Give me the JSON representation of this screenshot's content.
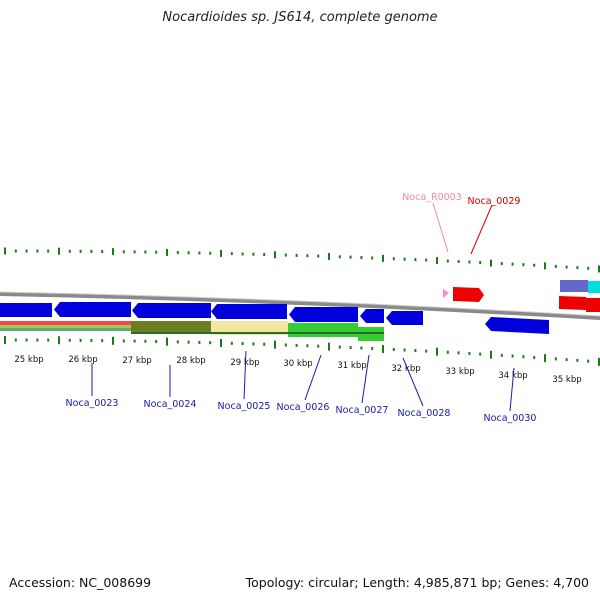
{
  "title": "Nocardioides sp. JS614, complete genome",
  "footer": {
    "accession": "Accession: NC_008699",
    "topology": "Topology: circular; Length: 4,985,871 bp; Genes: 4,700"
  },
  "colors": {
    "backbone": "#8a8a8a",
    "gene_blue": "#0000dd",
    "gene_red": "#ee0000",
    "rna_pink": "#ff88cc",
    "tick_green": "#1a7a1a",
    "label_blue": "#1a1aaa",
    "label_red": "#cc0000",
    "label_pink": "#ee88aa"
  },
  "kbp_labels": [
    "25 kbp",
    "26 kbp",
    "27 kbp",
    "28 kbp",
    "29 kbp",
    "30 kbp",
    "31 kbp",
    "32 kbp",
    "33 kbp",
    "34 kbp",
    "35 kbp"
  ],
  "gene_labels": [
    {
      "text": "Noca_R0003",
      "color": "pink"
    },
    {
      "text": "Noca_0029",
      "color": "red"
    },
    {
      "text": "Noca_0023",
      "color": "blue"
    },
    {
      "text": "Noca_0024",
      "color": "blue"
    },
    {
      "text": "Noca_0025",
      "color": "blue"
    },
    {
      "text": "Noca_0026",
      "color": "blue"
    },
    {
      "text": "Noca_0027",
      "color": "blue"
    },
    {
      "text": "Noca_0028",
      "color": "blue"
    },
    {
      "text": "Noca_0030",
      "color": "blue"
    }
  ]
}
